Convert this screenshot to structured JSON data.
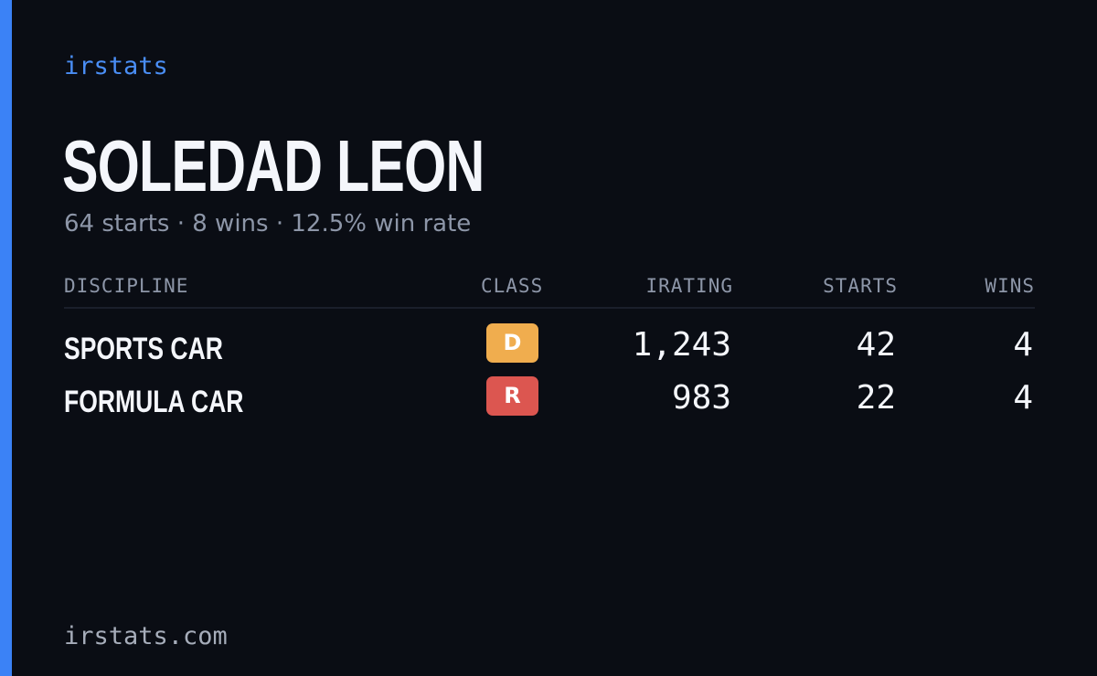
{
  "brand": "irstats",
  "driver": {
    "name": "SOLEDAD LEON",
    "summary": "64 starts · 8 wins · 12.5% win rate"
  },
  "table": {
    "headers": {
      "discipline": "DISCIPLINE",
      "class": "CLASS",
      "irating": "IRATING",
      "starts": "STARTS",
      "wins": "WINS"
    },
    "rows": [
      {
        "discipline": "SPORTS CAR",
        "class": "D",
        "class_color": "#f0ad4e",
        "irating": "1,243",
        "starts": "42",
        "wins": "4"
      },
      {
        "discipline": "FORMULA CAR",
        "class": "R",
        "class_color": "#dc5650",
        "irating": "983",
        "starts": "22",
        "wins": "4"
      }
    ]
  },
  "footer": "irstats.com",
  "colors": {
    "background": "#0a0d14",
    "accent": "#3b82f6",
    "brand": "#4a8ef5",
    "muted_text": "#8d96a8"
  }
}
